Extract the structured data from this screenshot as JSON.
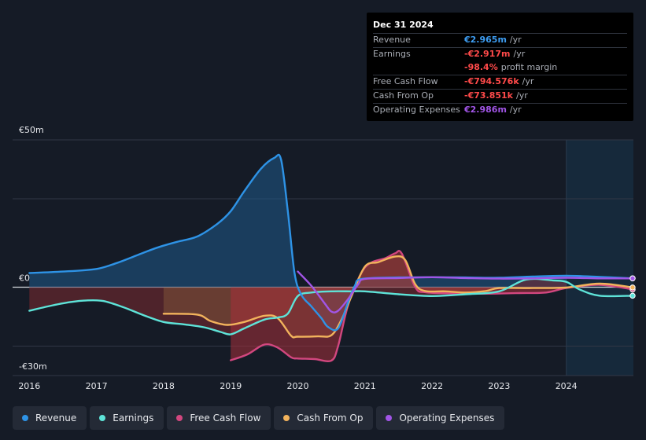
{
  "chart_data": {
    "type": "area",
    "title": "",
    "currency_prefix": "€",
    "ylim": [
      -30,
      50
    ],
    "y_tick_labels": [
      {
        "value": 50,
        "label": "€50m"
      },
      {
        "value": 0,
        "label": "€0"
      },
      {
        "value": -30,
        "label": "-€30m"
      }
    ],
    "xlim": [
      2015.75,
      2025.0
    ],
    "x_ticks": [
      2016,
      2017,
      2018,
      2019,
      2020,
      2021,
      2022,
      2023,
      2024
    ],
    "forecast_start": 2024.0,
    "series": [
      {
        "name": "Revenue",
        "color": "#2e93e6",
        "fill": true,
        "points": [
          [
            2016.0,
            4.8
          ],
          [
            2016.5,
            5.3
          ],
          [
            2017.0,
            6.2
          ],
          [
            2017.3,
            8.2
          ],
          [
            2017.6,
            10.8
          ],
          [
            2017.9,
            13.4
          ],
          [
            2018.2,
            15.4
          ],
          [
            2018.5,
            17.2
          ],
          [
            2018.8,
            21.5
          ],
          [
            2019.0,
            25.8
          ],
          [
            2019.2,
            32.5
          ],
          [
            2019.45,
            40.2
          ],
          [
            2019.65,
            43.9
          ],
          [
            2019.75,
            43.3
          ],
          [
            2019.85,
            26.0
          ],
          [
            2019.95,
            5.0
          ],
          [
            2020.05,
            -2.5
          ],
          [
            2020.2,
            -6.5
          ],
          [
            2020.35,
            -10.5
          ],
          [
            2020.45,
            -13.5
          ],
          [
            2020.6,
            -14.0
          ],
          [
            2020.75,
            -5.0
          ],
          [
            2020.85,
            0.5
          ],
          [
            2020.95,
            2.8
          ],
          [
            2021.5,
            3.3
          ],
          [
            2022.0,
            3.4
          ],
          [
            2022.5,
            3.3
          ],
          [
            2023.0,
            3.2
          ],
          [
            2023.5,
            3.6
          ],
          [
            2024.0,
            3.9
          ],
          [
            2024.5,
            3.5
          ],
          [
            2025.0,
            3.0
          ]
        ]
      },
      {
        "name": "Earnings",
        "color": "#5ee3d8",
        "fill": true,
        "points": [
          [
            2016.0,
            -8.0
          ],
          [
            2016.3,
            -6.4
          ],
          [
            2016.6,
            -5.1
          ],
          [
            2016.85,
            -4.5
          ],
          [
            2017.1,
            -4.7
          ],
          [
            2017.4,
            -6.8
          ],
          [
            2017.7,
            -9.5
          ],
          [
            2018.0,
            -11.8
          ],
          [
            2018.3,
            -12.6
          ],
          [
            2018.6,
            -13.6
          ],
          [
            2018.85,
            -15.2
          ],
          [
            2019.0,
            -16.0
          ],
          [
            2019.2,
            -14.0
          ],
          [
            2019.5,
            -11.0
          ],
          [
            2019.7,
            -10.3
          ],
          [
            2019.85,
            -9.0
          ],
          [
            2020.0,
            -3.0
          ],
          [
            2020.2,
            -1.8
          ],
          [
            2020.5,
            -1.4
          ],
          [
            2020.8,
            -1.4
          ],
          [
            2021.0,
            -1.4
          ],
          [
            2021.5,
            -2.4
          ],
          [
            2022.0,
            -3.0
          ],
          [
            2022.5,
            -2.4
          ],
          [
            2023.0,
            -1.4
          ],
          [
            2023.4,
            2.6
          ],
          [
            2023.8,
            2.3
          ],
          [
            2024.0,
            1.8
          ],
          [
            2024.2,
            -0.8
          ],
          [
            2024.5,
            -2.9
          ],
          [
            2025.0,
            -2.9
          ]
        ]
      },
      {
        "name": "Free Cash Flow",
        "color": "#d2477f",
        "fill": true,
        "points": [
          [
            2019.0,
            -24.8
          ],
          [
            2019.25,
            -22.8
          ],
          [
            2019.5,
            -19.5
          ],
          [
            2019.7,
            -20.5
          ],
          [
            2019.9,
            -23.8
          ],
          [
            2020.0,
            -24.2
          ],
          [
            2020.25,
            -24.4
          ],
          [
            2020.5,
            -24.9
          ],
          [
            2020.6,
            -20.0
          ],
          [
            2020.75,
            -6.0
          ],
          [
            2020.95,
            5.0
          ],
          [
            2021.1,
            8.4
          ],
          [
            2021.3,
            9.8
          ],
          [
            2021.45,
            11.5
          ],
          [
            2021.55,
            11.4
          ],
          [
            2021.75,
            0.0
          ],
          [
            2021.9,
            -1.7
          ],
          [
            2022.3,
            -2.1
          ],
          [
            2022.8,
            -2.2
          ],
          [
            2023.3,
            -2.0
          ],
          [
            2023.7,
            -1.8
          ],
          [
            2024.0,
            -0.3
          ],
          [
            2024.5,
            0.8
          ],
          [
            2025.0,
            -0.8
          ]
        ]
      },
      {
        "name": "Cash From Op",
        "color": "#f2b35c",
        "fill": true,
        "points": [
          [
            2018.0,
            -9.0
          ],
          [
            2018.5,
            -9.3
          ],
          [
            2018.7,
            -11.5
          ],
          [
            2018.95,
            -12.8
          ],
          [
            2019.2,
            -11.8
          ],
          [
            2019.5,
            -9.7
          ],
          [
            2019.7,
            -10.5
          ],
          [
            2019.9,
            -16.5
          ],
          [
            2020.0,
            -16.8
          ],
          [
            2020.3,
            -16.7
          ],
          [
            2020.5,
            -16.3
          ],
          [
            2020.65,
            -11.0
          ],
          [
            2020.8,
            -3.0
          ],
          [
            2021.0,
            7.0
          ],
          [
            2021.2,
            8.5
          ],
          [
            2021.45,
            10.4
          ],
          [
            2021.6,
            9.2
          ],
          [
            2021.75,
            1.0
          ],
          [
            2021.9,
            -1.3
          ],
          [
            2022.2,
            -1.4
          ],
          [
            2022.5,
            -1.8
          ],
          [
            2022.8,
            -1.3
          ],
          [
            2023.0,
            -0.3
          ],
          [
            2023.5,
            -0.3
          ],
          [
            2024.0,
            -0.1
          ],
          [
            2024.5,
            1.2
          ],
          [
            2025.0,
            -0.1
          ]
        ]
      },
      {
        "name": "Operating Expenses",
        "color": "#a155e6",
        "fill": false,
        "points": [
          [
            2020.0,
            5.3
          ],
          [
            2020.2,
            0.5
          ],
          [
            2020.4,
            -5.5
          ],
          [
            2020.5,
            -8.3
          ],
          [
            2020.6,
            -8.0
          ],
          [
            2020.75,
            -4.0
          ],
          [
            2020.9,
            1.0
          ],
          [
            2021.0,
            2.8
          ],
          [
            2021.5,
            3.1
          ],
          [
            2022.0,
            3.4
          ],
          [
            2022.5,
            3.1
          ],
          [
            2023.0,
            2.9
          ],
          [
            2023.5,
            3.0
          ],
          [
            2024.0,
            3.2
          ],
          [
            2024.5,
            3.0
          ],
          [
            2025.0,
            3.0
          ]
        ]
      }
    ]
  },
  "tooltip": {
    "date": "Dec 31 2024",
    "rows": [
      {
        "label": "Revenue",
        "value": "€2.965m",
        "unit": "/yr",
        "color": "#3d9cf0"
      },
      {
        "label": "Earnings",
        "value": "-€2.917m",
        "unit": "/yr",
        "color": "#ff4a4a"
      },
      {
        "label": "",
        "value": "-98.4%",
        "unit": "profit margin",
        "color": "#ff4a4a"
      },
      {
        "label": "Free Cash Flow",
        "value": "-€794.576k",
        "unit": "/yr",
        "color": "#ff4a4a"
      },
      {
        "label": "Cash From Op",
        "value": "-€73.851k",
        "unit": "/yr",
        "color": "#ff4a4a"
      },
      {
        "label": "Operating Expenses",
        "value": "€2.986m",
        "unit": "/yr",
        "color": "#a155e6"
      }
    ]
  },
  "legend": [
    {
      "label": "Revenue",
      "color": "#2e93e6"
    },
    {
      "label": "Earnings",
      "color": "#5ee3d8"
    },
    {
      "label": "Free Cash Flow",
      "color": "#d2477f"
    },
    {
      "label": "Cash From Op",
      "color": "#f2b35c"
    },
    {
      "label": "Operating Expenses",
      "color": "#a155e6"
    }
  ]
}
